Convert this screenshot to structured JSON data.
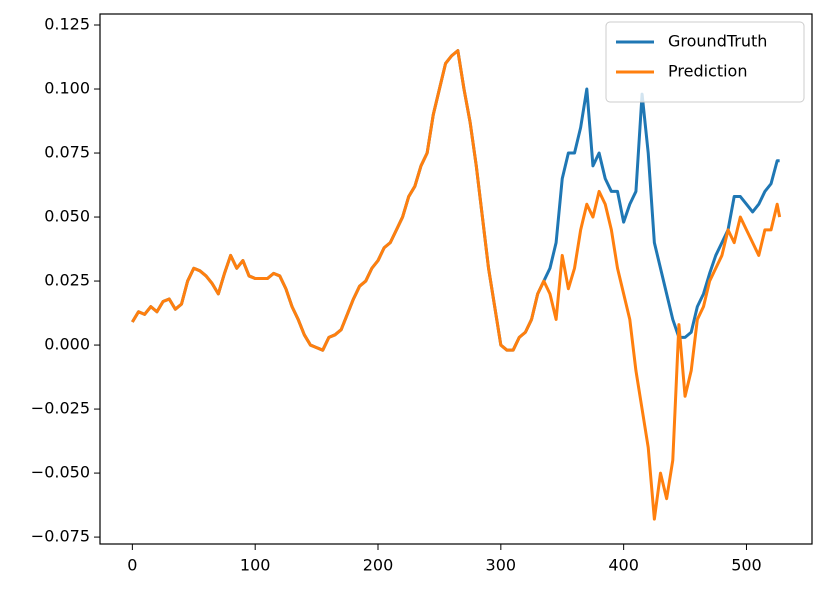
{
  "chart_data": {
    "type": "line",
    "x": [
      0,
      5,
      10,
      15,
      20,
      25,
      30,
      35,
      40,
      45,
      50,
      55,
      60,
      65,
      70,
      75,
      80,
      85,
      90,
      95,
      100,
      110,
      115,
      120,
      125,
      130,
      135,
      140,
      145,
      150,
      155,
      160,
      165,
      170,
      175,
      180,
      185,
      190,
      195,
      200,
      205,
      210,
      215,
      220,
      225,
      230,
      235,
      240,
      245,
      250,
      255,
      260,
      265,
      270,
      275,
      280,
      285,
      290,
      295,
      300,
      305,
      310,
      315,
      320,
      325,
      330,
      335,
      340,
      345,
      350,
      355,
      360,
      365,
      370,
      375,
      380,
      385,
      390,
      395,
      400,
      405,
      410,
      415,
      420,
      425,
      430,
      435,
      440,
      445,
      450,
      455,
      460,
      465,
      470,
      475,
      480,
      485,
      490,
      495,
      500,
      505,
      510,
      515,
      520,
      525,
      527
    ],
    "series": [
      {
        "name": "GroundTruth",
        "color": "#1f77b4",
        "values": [
          0.009,
          0.013,
          0.012,
          0.015,
          0.013,
          0.017,
          0.018,
          0.014,
          0.016,
          0.025,
          0.03,
          0.029,
          0.027,
          0.024,
          0.02,
          0.028,
          0.035,
          0.03,
          0.033,
          0.027,
          0.026,
          0.026,
          0.028,
          0.027,
          0.022,
          0.015,
          0.01,
          0.004,
          0.0,
          -0.001,
          -0.002,
          0.003,
          0.004,
          0.006,
          0.012,
          0.018,
          0.023,
          0.025,
          0.03,
          0.033,
          0.038,
          0.04,
          0.045,
          0.05,
          0.058,
          0.062,
          0.07,
          0.075,
          0.09,
          0.1,
          0.11,
          0.113,
          0.115,
          0.1,
          0.087,
          0.07,
          0.05,
          0.03,
          0.015,
          0.0,
          -0.002,
          -0.002,
          0.003,
          0.005,
          0.01,
          0.02,
          0.025,
          0.03,
          0.04,
          0.065,
          0.075,
          0.075,
          0.085,
          0.1,
          0.07,
          0.075,
          0.065,
          0.06,
          0.06,
          0.048,
          0.055,
          0.06,
          0.098,
          0.075,
          0.04,
          0.03,
          0.02,
          0.01,
          0.003,
          0.003,
          0.005,
          0.015,
          0.02,
          0.028,
          0.035,
          0.04,
          0.045,
          0.058,
          0.058,
          0.055,
          0.052,
          0.055,
          0.06,
          0.063,
          0.072,
          0.072
        ]
      },
      {
        "name": "Prediction",
        "color": "#ff7f0e",
        "values": [
          0.009,
          0.013,
          0.012,
          0.015,
          0.013,
          0.017,
          0.018,
          0.014,
          0.016,
          0.025,
          0.03,
          0.029,
          0.027,
          0.024,
          0.02,
          0.028,
          0.035,
          0.03,
          0.033,
          0.027,
          0.026,
          0.026,
          0.028,
          0.027,
          0.022,
          0.015,
          0.01,
          0.004,
          0.0,
          -0.001,
          -0.002,
          0.003,
          0.004,
          0.006,
          0.012,
          0.018,
          0.023,
          0.025,
          0.03,
          0.033,
          0.038,
          0.04,
          0.045,
          0.05,
          0.058,
          0.062,
          0.07,
          0.075,
          0.09,
          0.1,
          0.11,
          0.113,
          0.115,
          0.1,
          0.087,
          0.07,
          0.05,
          0.03,
          0.015,
          0.0,
          -0.002,
          -0.002,
          0.003,
          0.005,
          0.01,
          0.02,
          0.025,
          0.02,
          0.01,
          0.035,
          0.022,
          0.03,
          0.045,
          0.055,
          0.05,
          0.06,
          0.055,
          0.045,
          0.03,
          0.02,
          0.01,
          -0.01,
          -0.025,
          -0.04,
          -0.068,
          -0.05,
          -0.06,
          -0.045,
          0.008,
          -0.02,
          -0.01,
          0.01,
          0.015,
          0.025,
          0.03,
          0.035,
          0.045,
          0.04,
          0.05,
          0.045,
          0.04,
          0.035,
          0.045,
          0.045,
          0.055,
          0.05
        ]
      }
    ],
    "xlim": [
      -26.35,
      553.35
    ],
    "xticks": [
      0,
      100,
      200,
      300,
      400,
      500
    ],
    "ylim": [
      -0.0777,
      0.1293
    ],
    "yticks": [
      {
        "value": -0.075,
        "label": "−0.075"
      },
      {
        "value": -0.05,
        "label": "−0.050"
      },
      {
        "value": -0.025,
        "label": "−0.025"
      },
      {
        "value": 0,
        "label": "0.000"
      },
      0.025,
      {
        "value": 0.05,
        "label": "0.050"
      },
      0.075,
      {
        "value": 0.1,
        "label": "0.100"
      },
      0.125
    ],
    "legend": "upper right"
  }
}
